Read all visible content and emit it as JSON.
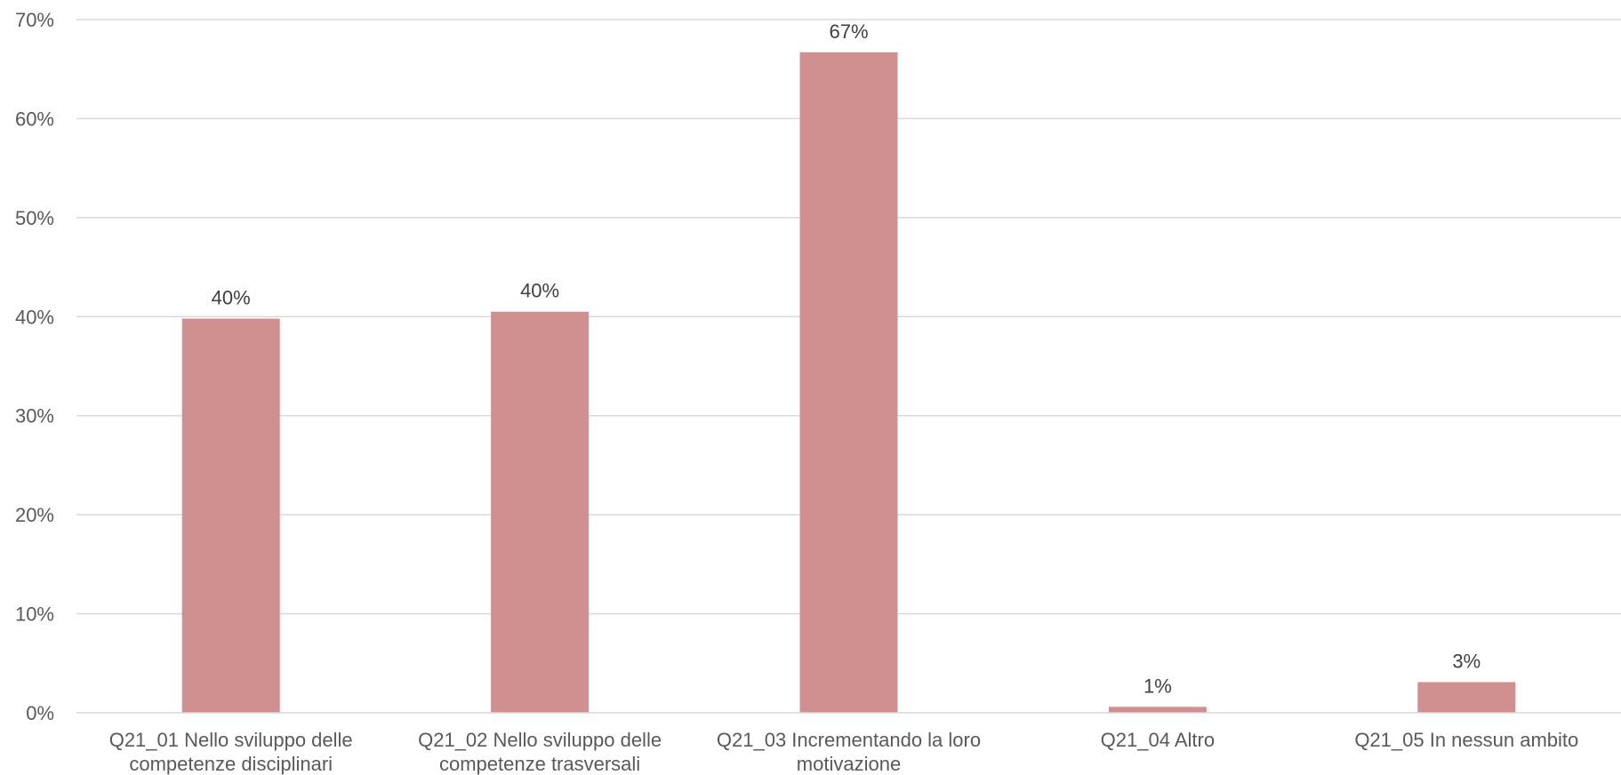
{
  "chart_data": {
    "type": "bar",
    "categories": [
      [
        "Q21_01 Nello sviluppo delle",
        "competenze disciplinari"
      ],
      [
        "Q21_02 Nello sviluppo delle",
        "competenze trasversali"
      ],
      [
        "Q21_03 Incrementando la loro",
        "motivazione"
      ],
      [
        "Q21_04 Altro"
      ],
      [
        "Q21_05 In nessun ambito"
      ]
    ],
    "values": [
      39.8,
      40.5,
      66.7,
      0.6,
      3.1
    ],
    "data_labels": [
      "40%",
      "40%",
      "67%",
      "1%",
      "3%"
    ],
    "ylim": [
      0,
      70
    ],
    "yticks": [
      0,
      10,
      20,
      30,
      40,
      50,
      60,
      70
    ],
    "ytick_labels": [
      "0%",
      "10%",
      "20%",
      "30%",
      "40%",
      "50%",
      "60%",
      "70%"
    ],
    "grid": true,
    "legend": "none",
    "bar_color": "#d09090"
  }
}
